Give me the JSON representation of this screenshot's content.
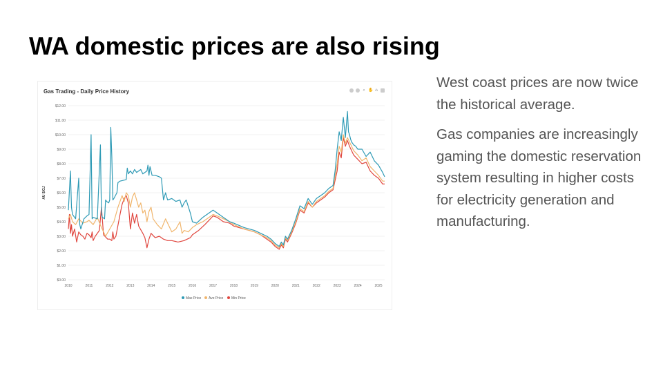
{
  "slide": {
    "title": "WA domestic prices are also rising",
    "paragraphs": [
      "West coast prices are now twice the historical average.",
      "Gas companies are increasingly gaming the domestic reservation system resulting in higher costs for electricity generation and manufacturing."
    ]
  },
  "toolbar": {
    "icons": [
      "zoom-in-icon",
      "zoom-out-icon",
      "magnify-icon",
      "pan-icon",
      "home-icon",
      "menu-icon"
    ]
  },
  "chart_data": {
    "type": "line",
    "title": "Gas Trading - Daily Price History",
    "xlabel": "",
    "ylabel": "AU $/GJ",
    "xlim": [
      2010,
      2025.3
    ],
    "ylim": [
      0,
      12
    ],
    "yticks": [
      0,
      1,
      2,
      3,
      4,
      5,
      6,
      7,
      8,
      9,
      10,
      11,
      12
    ],
    "ytick_labels": [
      "$0.00",
      "$1.00",
      "$2.00",
      "$3.00",
      "$4.00",
      "$5.00",
      "$6.00",
      "$7.00",
      "$8.00",
      "$9.00",
      "$10.00",
      "$11.00",
      "$12.00"
    ],
    "xticks": [
      2010,
      2011,
      2012,
      2013,
      2014,
      2015,
      2016,
      2017,
      2018,
      2019,
      2020,
      2021,
      2022,
      2023,
      2024,
      2025
    ],
    "xtick_labels": [
      "2010",
      "2011",
      "2012",
      "2013",
      "2014",
      "2015",
      "2016",
      "2017",
      "2018",
      "2019",
      "2020",
      "2021",
      "2022",
      "2023",
      "2024",
      "2025"
    ],
    "grid": true,
    "legend_position": "bottom-center",
    "series": [
      {
        "name": "Max Price",
        "color": "#2E9AB5",
        "x": [
          2010.0,
          2010.1,
          2010.15,
          2010.2,
          2010.35,
          2010.5,
          2010.55,
          2010.6,
          2010.75,
          2010.9,
          2011.0,
          2011.1,
          2011.15,
          2011.2,
          2011.4,
          2011.55,
          2011.6,
          2011.65,
          2011.75,
          2011.8,
          2011.85,
          2011.95,
          2012.0,
          2012.05,
          2012.1,
          2012.15,
          2012.2,
          2012.35,
          2012.4,
          2012.5,
          2012.8,
          2012.85,
          2012.9,
          2013.0,
          2013.1,
          2013.2,
          2013.3,
          2013.5,
          2013.6,
          2013.8,
          2013.85,
          2013.9,
          2013.95,
          2014.0,
          2014.05,
          2014.2,
          2014.4,
          2014.5,
          2014.6,
          2014.7,
          2014.8,
          2015.0,
          2015.2,
          2015.4,
          2015.5,
          2015.6,
          2015.7,
          2015.9,
          2016.0,
          2016.2,
          2016.5,
          2016.8,
          2017.0,
          2017.2,
          2017.5,
          2017.8,
          2018.0,
          2018.5,
          2019.0,
          2019.3,
          2019.6,
          2019.8,
          2020.0,
          2020.2,
          2020.3,
          2020.4,
          2020.5,
          2020.6,
          2020.7,
          2020.8,
          2021.0,
          2021.2,
          2021.4,
          2021.6,
          2021.8,
          2022.0,
          2022.2,
          2022.4,
          2022.6,
          2022.8,
          2022.9,
          2023.0,
          2023.1,
          2023.2,
          2023.3,
          2023.4,
          2023.5,
          2023.55,
          2023.6,
          2023.65,
          2023.7,
          2023.8,
          2023.9,
          2024.0,
          2024.2,
          2024.4,
          2024.6,
          2024.8,
          2025.0,
          2025.2,
          2025.3
        ],
        "values": [
          4.8,
          7.5,
          5.0,
          4.5,
          4.2,
          7.0,
          3.8,
          3.5,
          4.2,
          4.4,
          4.5,
          10.0,
          4.2,
          4.3,
          4.2,
          9.3,
          4.5,
          4.3,
          4.2,
          5.5,
          5.4,
          5.3,
          5.5,
          10.5,
          8.5,
          5.5,
          5.6,
          6.0,
          6.7,
          6.8,
          6.9,
          7.7,
          7.3,
          7.5,
          7.3,
          7.6,
          7.4,
          7.6,
          7.3,
          7.5,
          7.9,
          7.2,
          7.8,
          7.5,
          7.2,
          7.2,
          7.1,
          7.0,
          5.5,
          6.0,
          5.5,
          5.6,
          5.4,
          5.5,
          5.0,
          5.3,
          5.5,
          4.6,
          4.0,
          3.9,
          4.3,
          4.6,
          4.8,
          4.6,
          4.3,
          4.0,
          3.9,
          3.6,
          3.4,
          3.2,
          3.0,
          2.8,
          2.5,
          2.3,
          2.6,
          2.4,
          3.0,
          2.8,
          3.1,
          3.4,
          4.2,
          5.1,
          4.9,
          5.6,
          5.2,
          5.6,
          5.8,
          6.0,
          6.3,
          6.5,
          7.5,
          9.0,
          10.2,
          9.6,
          11.2,
          9.8,
          11.6,
          10.2,
          10.0,
          9.7,
          9.5,
          9.3,
          9.2,
          9.0,
          9.0,
          8.5,
          8.8,
          8.2,
          7.9,
          7.4,
          7.1
        ]
      },
      {
        "name": "Ave Price",
        "color": "#F0B56C",
        "x": [
          2010.0,
          2010.1,
          2010.2,
          2010.35,
          2010.5,
          2010.7,
          2010.9,
          2011.0,
          2011.2,
          2011.4,
          2011.6,
          2011.8,
          2012.0,
          2012.2,
          2012.4,
          2012.6,
          2012.7,
          2012.8,
          2012.9,
          2013.0,
          2013.1,
          2013.2,
          2013.3,
          2013.4,
          2013.5,
          2013.6,
          2013.7,
          2013.8,
          2013.9,
          2014.0,
          2014.1,
          2014.3,
          2014.5,
          2014.7,
          2014.9,
          2015.0,
          2015.2,
          2015.4,
          2015.5,
          2015.6,
          2015.8,
          2016.0,
          2016.2,
          2016.5,
          2016.8,
          2017.0,
          2017.2,
          2017.5,
          2017.8,
          2018.0,
          2018.5,
          2019.0,
          2019.3,
          2019.6,
          2019.8,
          2020.0,
          2020.2,
          2020.3,
          2020.4,
          2020.5,
          2020.6,
          2020.7,
          2020.8,
          2021.0,
          2021.2,
          2021.4,
          2021.6,
          2021.8,
          2022.0,
          2022.2,
          2022.4,
          2022.6,
          2022.8,
          2023.0,
          2023.1,
          2023.2,
          2023.3,
          2023.4,
          2023.5,
          2023.6,
          2023.7,
          2023.8,
          2024.0,
          2024.2,
          2024.4,
          2024.6,
          2024.8,
          2025.0,
          2025.2,
          2025.3
        ],
        "values": [
          4.2,
          4.5,
          4.0,
          3.8,
          4.2,
          3.9,
          4.0,
          4.1,
          3.8,
          4.3,
          3.6,
          3.0,
          3.5,
          4.0,
          5.0,
          5.8,
          5.4,
          6.0,
          5.8,
          5.0,
          5.7,
          6.0,
          5.5,
          5.0,
          5.3,
          4.6,
          4.8,
          4.0,
          4.7,
          5.0,
          4.2,
          3.8,
          3.5,
          4.2,
          3.6,
          3.3,
          3.5,
          4.0,
          3.2,
          3.4,
          3.3,
          3.6,
          3.8,
          4.0,
          4.3,
          4.5,
          4.4,
          4.2,
          4.0,
          3.8,
          3.5,
          3.3,
          3.1,
          2.9,
          2.7,
          2.4,
          2.2,
          2.5,
          2.3,
          2.9,
          2.7,
          3.0,
          3.3,
          4.0,
          4.9,
          4.7,
          5.4,
          5.0,
          5.4,
          5.6,
          5.8,
          6.1,
          6.3,
          8.0,
          9.2,
          8.8,
          10.0,
          9.4,
          9.8,
          9.5,
          9.2,
          8.9,
          8.6,
          8.2,
          8.4,
          7.8,
          7.5,
          7.2,
          6.8,
          6.8
        ]
      },
      {
        "name": "Min Price",
        "color": "#E0463E",
        "x": [
          2010.0,
          2010.05,
          2010.1,
          2010.15,
          2010.2,
          2010.3,
          2010.4,
          2010.5,
          2010.6,
          2010.7,
          2010.8,
          2010.9,
          2011.0,
          2011.1,
          2011.15,
          2011.2,
          2011.3,
          2011.5,
          2011.6,
          2011.7,
          2011.9,
          2012.0,
          2012.1,
          2012.15,
          2012.2,
          2012.3,
          2012.5,
          2012.6,
          2012.7,
          2012.8,
          2012.9,
          2013.0,
          2013.1,
          2013.2,
          2013.3,
          2013.4,
          2013.6,
          2013.7,
          2013.8,
          2013.9,
          2014.0,
          2014.2,
          2014.4,
          2014.6,
          2014.8,
          2015.0,
          2015.3,
          2015.6,
          2015.9,
          2016.0,
          2016.3,
          2016.6,
          2016.8,
          2017.0,
          2017.2,
          2017.5,
          2017.8,
          2018.0,
          2018.5,
          2019.0,
          2019.3,
          2019.6,
          2019.8,
          2020.0,
          2020.2,
          2020.3,
          2020.4,
          2020.5,
          2020.6,
          2020.7,
          2020.8,
          2021.0,
          2021.2,
          2021.4,
          2021.6,
          2021.8,
          2022.0,
          2022.2,
          2022.4,
          2022.6,
          2022.8,
          2023.0,
          2023.1,
          2023.2,
          2023.3,
          2023.4,
          2023.5,
          2023.6,
          2023.7,
          2023.8,
          2024.0,
          2024.2,
          2024.4,
          2024.6,
          2024.8,
          2025.0,
          2025.2,
          2025.3
        ],
        "values": [
          3.5,
          4.5,
          3.2,
          3.8,
          3.0,
          3.5,
          2.6,
          3.3,
          3.1,
          3.0,
          2.8,
          3.2,
          3.1,
          2.9,
          3.3,
          2.7,
          3.0,
          3.4,
          5.0,
          3.1,
          2.8,
          2.8,
          2.7,
          3.3,
          2.8,
          3.0,
          4.5,
          5.2,
          5.6,
          5.8,
          5.3,
          3.5,
          4.6,
          3.9,
          4.5,
          3.7,
          3.2,
          2.9,
          2.2,
          2.8,
          3.2,
          2.9,
          3.0,
          2.8,
          2.7,
          2.7,
          2.6,
          2.7,
          2.9,
          3.1,
          3.4,
          3.8,
          4.1,
          4.4,
          4.3,
          4.0,
          3.9,
          3.7,
          3.5,
          3.3,
          3.1,
          2.8,
          2.6,
          2.3,
          2.1,
          2.4,
          2.2,
          2.8,
          2.6,
          2.9,
          3.2,
          3.9,
          4.8,
          4.6,
          5.3,
          5.0,
          5.3,
          5.5,
          5.7,
          6.0,
          6.2,
          7.5,
          8.8,
          8.4,
          9.8,
          9.2,
          9.6,
          9.2,
          8.9,
          8.6,
          8.3,
          8.0,
          8.1,
          7.5,
          7.2,
          7.0,
          6.6,
          6.6
        ]
      }
    ]
  }
}
